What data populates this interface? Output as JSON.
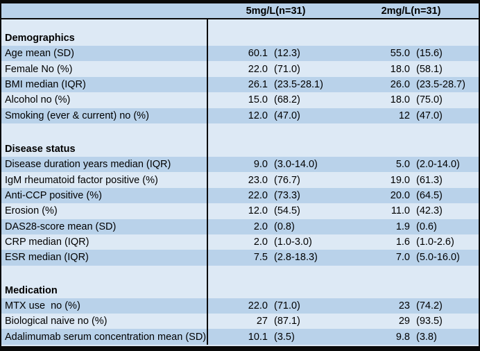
{
  "table": {
    "colors": {
      "dark_row": "#b9d2ea",
      "light_row": "#dde9f5",
      "border": "#0a0a0a"
    },
    "columns": [
      "5mg/L(n=31)",
      "2mg/L(n=31)"
    ],
    "rows": [
      {
        "type": "blank",
        "h": 16
      },
      {
        "type": "section",
        "label": "Demographics"
      },
      {
        "type": "data",
        "shade": "dark",
        "label": "Age mean (SD)",
        "c1": {
          "n": "60.1",
          "p": "(12.3)"
        },
        "c2": {
          "n": "55.0",
          "p": "(15.6)"
        }
      },
      {
        "type": "data",
        "shade": "light",
        "label": "Female No (%)",
        "c1": {
          "n": "22.0",
          "p": "(71.0)"
        },
        "c2": {
          "n": "18.0",
          "p": "(58.1)"
        }
      },
      {
        "type": "data",
        "shade": "dark",
        "label": "BMI median (IQR)",
        "c1": {
          "n": "26.1",
          "p": "(23.5-28.1)"
        },
        "c2": {
          "n": "26.0",
          "p": "(23.5-28.7)"
        }
      },
      {
        "type": "data",
        "shade": "light",
        "label": "Alcohol no (%)",
        "c1": {
          "n": "15.0",
          "p": "(68.2)"
        },
        "c2": {
          "n": "18.0",
          "p": "(75.0)"
        }
      },
      {
        "type": "data",
        "shade": "dark",
        "label": "Smoking (ever & current) no (%)",
        "c1": {
          "n": "12.0",
          "p": "(47.0)"
        },
        "c2": {
          "n": "12",
          "p": "(47.0)"
        }
      },
      {
        "type": "blank",
        "h": 26
      },
      {
        "type": "section",
        "label": "Disease status"
      },
      {
        "type": "data",
        "shade": "dark",
        "label": "Disease duration years median (IQR)",
        "c1": {
          "n": "9.0",
          "p": "(3.0-14.0)"
        },
        "c2": {
          "n": "5.0",
          "p": "(2.0-14.0)"
        }
      },
      {
        "type": "data",
        "shade": "light",
        "label": "IgM rheumatoid factor positive (%)",
        "c1": {
          "n": "23.0",
          "p": "(76.7)"
        },
        "c2": {
          "n": "19.0",
          "p": "(61.3)"
        }
      },
      {
        "type": "data",
        "shade": "dark",
        "label": "Anti-CCP positive (%)",
        "c1": {
          "n": "22.0",
          "p": "(73.3)"
        },
        "c2": {
          "n": "20.0",
          "p": "(64.5)"
        }
      },
      {
        "type": "data",
        "shade": "light",
        "label": "Erosion (%)",
        "c1": {
          "n": "12.0",
          "p": "(54.5)"
        },
        "c2": {
          "n": "11.0",
          "p": "(42.3)"
        }
      },
      {
        "type": "data",
        "shade": "dark",
        "label": "DAS28-score mean (SD)",
        "c1": {
          "n": "2.0",
          "p": "(0.8)"
        },
        "c2": {
          "n": "1.9",
          "p": "(0.6)"
        }
      },
      {
        "type": "data",
        "shade": "light",
        "label": "CRP median (IQR)",
        "c1": {
          "n": "2.0",
          "p": "(1.0-3.0)"
        },
        "c2": {
          "n": "1.6",
          "p": "(1.0-2.6)"
        }
      },
      {
        "type": "data",
        "shade": "dark",
        "label": "ESR median (IQR)",
        "c1": {
          "n": "7.5",
          "p": "(2.8-18.3)"
        },
        "c2": {
          "n": "7.0",
          "p": "(5.0-16.0)"
        }
      },
      {
        "type": "blank",
        "h": 25
      },
      {
        "type": "section",
        "label": "Medication"
      },
      {
        "type": "data",
        "shade": "dark",
        "label": "MTX use  no (%)",
        "c1": {
          "n": "22.0",
          "p": "(71.0)"
        },
        "c2": {
          "n": "23",
          "p": "(74.2)"
        }
      },
      {
        "type": "data",
        "shade": "light",
        "label": "Biological naive no (%)",
        "c1": {
          "n": "27",
          "p": "(87.1)"
        },
        "c2": {
          "n": "29",
          "p": "(93.5)"
        }
      },
      {
        "type": "data",
        "shade": "dark",
        "label": "Adalimumab serum concentration mean (SD)",
        "c1": {
          "n": "10.1",
          "p": "(3.5)"
        },
        "c2": {
          "n": "9.8",
          "p": "(3.8)"
        }
      }
    ]
  }
}
